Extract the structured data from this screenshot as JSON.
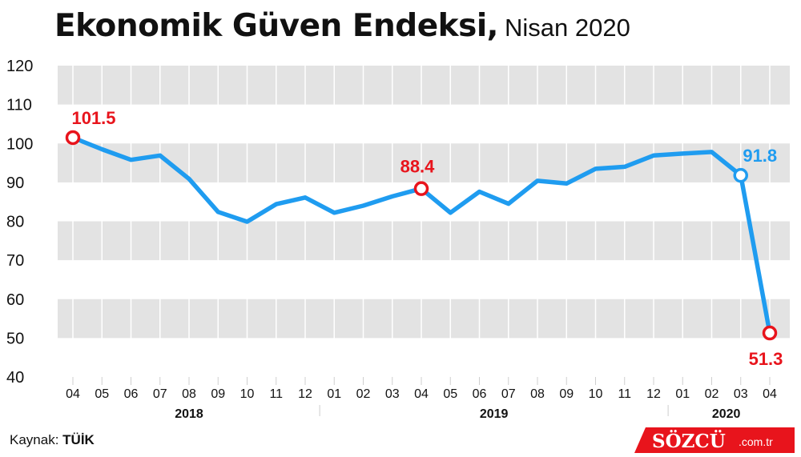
{
  "title": {
    "main": "Ekonomik Güven Endeksi,",
    "sub": "Nisan 2020"
  },
  "source": {
    "label": "Kaynak:",
    "value": "TÜİK"
  },
  "brand": {
    "name": "SÖZCÜ",
    "domain": ".com.tr"
  },
  "colors": {
    "line": "#1f9cf0",
    "highlight": "#e8141c",
    "band": "#e3e3e3",
    "text": "#111111"
  },
  "chart_data": {
    "type": "line",
    "title": "Ekonomik Güven Endeksi, Nisan 2020",
    "xlabel": "",
    "ylabel": "",
    "ylim": [
      40,
      120
    ],
    "yticks": [
      40,
      50,
      60,
      70,
      80,
      90,
      100,
      110,
      120
    ],
    "grid": "alternating horizontal bands",
    "categories": [
      "04",
      "05",
      "06",
      "07",
      "08",
      "09",
      "10",
      "11",
      "12",
      "01",
      "02",
      "03",
      "04",
      "05",
      "06",
      "07",
      "08",
      "09",
      "10",
      "11",
      "12",
      "01",
      "02",
      "03",
      "04"
    ],
    "years": [
      {
        "label": "2018",
        "start": 0,
        "end": 8
      },
      {
        "label": "2019",
        "start": 9,
        "end": 20
      },
      {
        "label": "2020",
        "start": 21,
        "end": 24
      }
    ],
    "series": [
      {
        "values": [
          101.5,
          98.5,
          95.8,
          96.9,
          90.9,
          82.4,
          79.9,
          84.4,
          86.1,
          82.2,
          84.0,
          86.4,
          88.4,
          82.2,
          87.6,
          84.5,
          90.4,
          89.7,
          93.5,
          94.0,
          96.9,
          97.4,
          97.8,
          91.8,
          51.3
        ]
      }
    ],
    "annotations": [
      {
        "index": 0,
        "label": "101.5",
        "color": "red"
      },
      {
        "index": 12,
        "label": "88.4",
        "color": "red"
      },
      {
        "index": 23,
        "label": "91.8",
        "color": "blue"
      },
      {
        "index": 24,
        "label": "51.3",
        "color": "red"
      }
    ]
  }
}
